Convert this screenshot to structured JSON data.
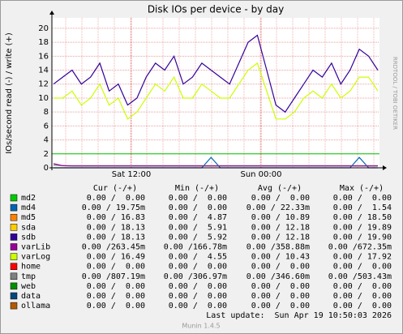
{
  "chart_data": {
    "type": "line",
    "title": "Disk IOs per device - by day",
    "y_label": "IOs/second read (-) / write (+)",
    "side_text": "RRDTOOL / TOBI OETIKER",
    "xticks": [
      "Sat 12:00",
      "Sun 00:00"
    ],
    "ylim": [
      0,
      21.5
    ],
    "yticks": [
      0,
      2,
      4,
      6,
      8,
      10,
      12,
      14,
      16,
      18,
      20
    ],
    "grid": true,
    "reference_line": {
      "value": 2,
      "color": "#00cc00"
    },
    "series": [
      {
        "name": "sdb",
        "color": "#330099",
        "values": [
          12,
          13,
          14,
          12,
          13,
          15,
          11,
          12,
          9,
          10,
          13,
          15,
          14,
          16,
          12,
          13,
          15,
          14,
          13,
          12,
          15,
          18,
          19,
          14,
          9,
          8,
          10,
          12,
          14,
          13,
          15,
          12,
          14,
          17,
          16,
          14
        ]
      },
      {
        "name": "varLog",
        "color": "#ccff00",
        "values": [
          10,
          10,
          11,
          9,
          10,
          12,
          9,
          10,
          7,
          8,
          10,
          12,
          11,
          13,
          10,
          10,
          12,
          11,
          10,
          10,
          12,
          14,
          15,
          11,
          7,
          7,
          8,
          10,
          11,
          10,
          12,
          10,
          11,
          13,
          13,
          11
        ]
      },
      {
        "name": "md4",
        "color": "#0066b3",
        "values": [
          0,
          0,
          0,
          0,
          0,
          0,
          0,
          0,
          0,
          0,
          0,
          0,
          0,
          0,
          0,
          0,
          0,
          1.5,
          0,
          0,
          0,
          0,
          0,
          0,
          0,
          0,
          0,
          0,
          0,
          0,
          0,
          0,
          0,
          1.5,
          0,
          0
        ]
      },
      {
        "name": "tmp",
        "color": "#808080",
        "values": [
          0.4,
          0.3,
          0.3,
          0.3,
          0.3,
          0.3,
          0.3,
          0.3,
          0.3,
          0.3,
          0.3,
          0.3,
          0.3,
          0.3,
          0.3,
          0.3,
          0.3,
          0.3,
          0.3,
          0.3,
          0.3,
          0.3,
          0.3,
          0.3,
          0.3,
          0.3,
          0.3,
          0.3,
          0.3,
          0.3,
          0.3,
          0.3,
          0.3,
          0.3,
          0.3,
          0.3
        ]
      },
      {
        "name": "varLib",
        "color": "#990099",
        "values": [
          0.6,
          0.3,
          0.25,
          0.25,
          0.25,
          0.25,
          0.25,
          0.25,
          0.25,
          0.25,
          0.25,
          0.25,
          0.25,
          0.25,
          0.25,
          0.25,
          0.25,
          0.25,
          0.25,
          0.25,
          0.25,
          0.25,
          0.25,
          0.25,
          0.25,
          0.25,
          0.25,
          0.25,
          0.25,
          0.25,
          0.25,
          0.25,
          0.25,
          0.25,
          0.25,
          0.25
        ]
      }
    ]
  },
  "legend": {
    "headers": [
      "Cur (-/+)",
      "Min (-/+)",
      "Avg (-/+)",
      "Max (-/+)"
    ],
    "rows": [
      {
        "name": "md2",
        "color": "#00cc00",
        "cells": [
          "0.00 /  0.00",
          "0.00 /  0.00",
          "0.00 /  0.00",
          "0.00 /  0.00"
        ]
      },
      {
        "name": "md4",
        "color": "#0066b3",
        "cells": [
          "0.00 / 19.75m",
          "0.00 /  0.00",
          "0.00 / 22.33m",
          "0.00 /  1.54"
        ]
      },
      {
        "name": "md5",
        "color": "#ff8000",
        "cells": [
          "0.00 / 16.83",
          "0.00 /  4.87",
          "0.00 / 10.89",
          "0.00 / 18.50"
        ]
      },
      {
        "name": "sda",
        "color": "#ffcc00",
        "cells": [
          "0.00 / 18.13",
          "0.00 /  5.91",
          "0.00 / 12.18",
          "0.00 / 19.89"
        ]
      },
      {
        "name": "sdb",
        "color": "#330099",
        "cells": [
          "0.00 / 18.13",
          "0.00 /  5.92",
          "0.00 / 12.18",
          "0.00 / 19.90"
        ]
      },
      {
        "name": "varLib",
        "color": "#990099",
        "cells": [
          "0.00 /263.45m",
          "0.00 /166.78m",
          "0.00 /358.88m",
          "0.00 /672.35m"
        ]
      },
      {
        "name": "varLog",
        "color": "#ccff00",
        "cells": [
          "0.00 / 16.49",
          "0.00 /  4.55",
          "0.00 / 10.43",
          "0.00 / 17.92"
        ]
      },
      {
        "name": "home",
        "color": "#ff0000",
        "cells": [
          "0.00 /  0.00",
          "0.00 /  0.00",
          "0.00 /  0.00",
          "0.00 /  0.00"
        ]
      },
      {
        "name": "tmp",
        "color": "#808080",
        "cells": [
          "0.00 /807.19m",
          "0.00 /306.97m",
          "0.00 /346.60m",
          "0.00 /503.43m"
        ]
      },
      {
        "name": "web",
        "color": "#008f00",
        "cells": [
          "0.00 /  0.00",
          "0.00 /  0.00",
          "0.00 /  0.00",
          "0.00 /  0.00"
        ]
      },
      {
        "name": "data",
        "color": "#00487d",
        "cells": [
          "0.00 /  0.00",
          "0.00 /  0.00",
          "0.00 /  0.00",
          "0.00 /  0.00"
        ]
      },
      {
        "name": "ollama",
        "color": "#b35a00",
        "cells": [
          "0.00 /  0.00",
          "0.00 /  0.00",
          "0.00 /  0.00",
          "0.00 /  0.00"
        ]
      }
    ],
    "last_update": "Last update:  Sun Apr 19 10:50:03 2026",
    "footer": "Munin 1.4.5"
  }
}
